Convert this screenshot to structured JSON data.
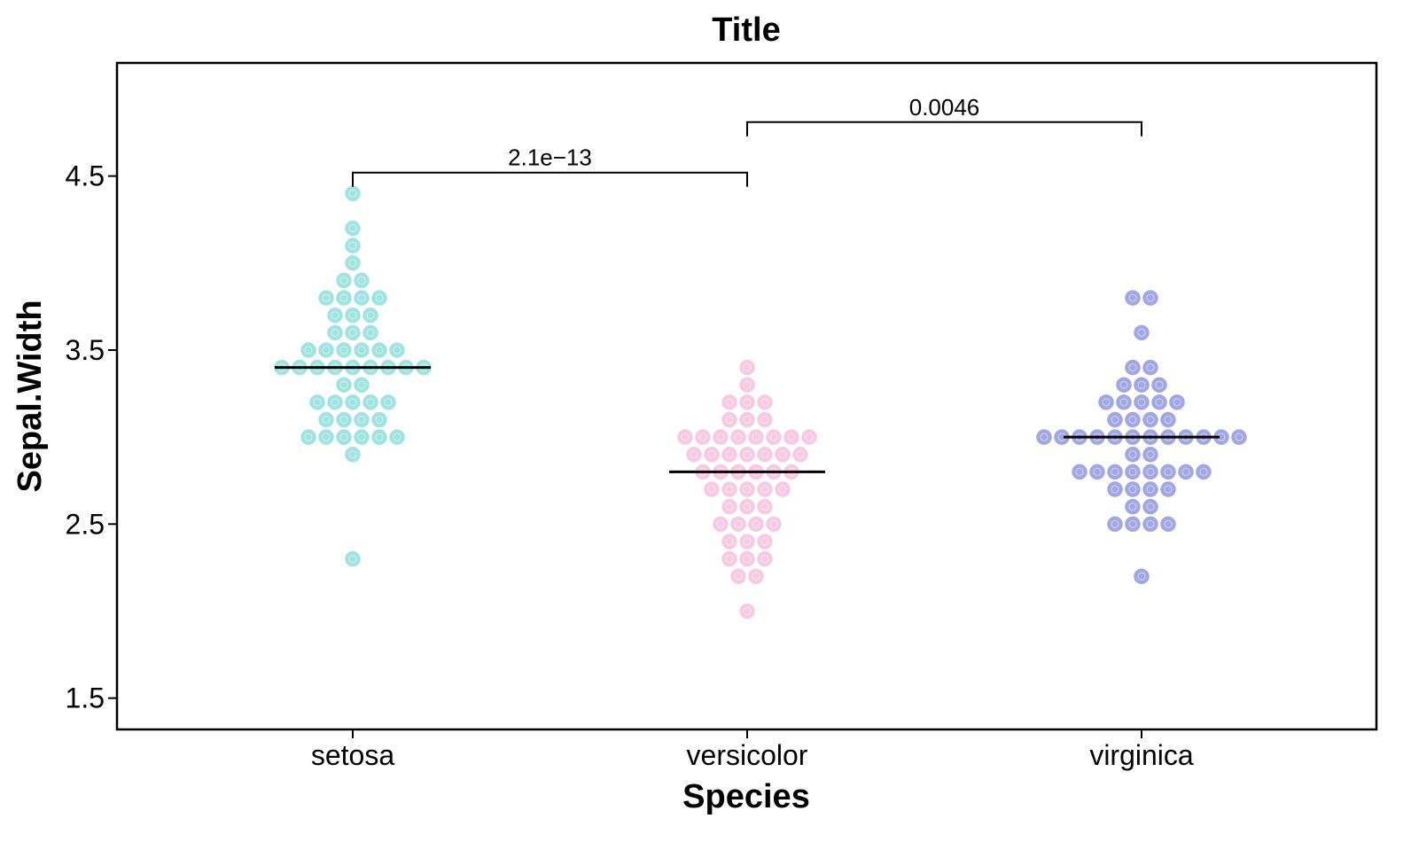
{
  "chart_data": {
    "type": "dotplot",
    "title": "Title",
    "xlabel": "Species",
    "ylabel": "Sepal.Width",
    "ylim": [
      1.32,
      5.15
    ],
    "yticks": [
      1.5,
      2.5,
      3.5,
      4.5
    ],
    "ytick_labels": [
      "1.5",
      "2.5",
      "3.5",
      "4.5"
    ],
    "categories": [
      "setosa",
      "versicolor",
      "virginica"
    ],
    "series": [
      {
        "name": "setosa",
        "color": "#90e0dc",
        "median": 3.4,
        "counts": {
          "2.3": 1,
          "2.9": 1,
          "3.0": 6,
          "3.1": 4,
          "3.2": 5,
          "3.3": 2,
          "3.4": 9,
          "3.5": 6,
          "3.6": 3,
          "3.7": 3,
          "3.8": 4,
          "3.9": 2,
          "4.0": 1,
          "4.1": 1,
          "4.2": 1,
          "4.4": 1
        }
      },
      {
        "name": "versicolor",
        "color": "#f7c0dd",
        "median": 2.8,
        "counts": {
          "2.0": 1,
          "2.2": 2,
          "2.3": 3,
          "2.4": 3,
          "2.5": 4,
          "2.6": 3,
          "2.7": 5,
          "2.8": 6,
          "2.9": 7,
          "3.0": 8,
          "3.1": 3,
          "3.2": 3,
          "3.3": 1,
          "3.4": 1
        }
      },
      {
        "name": "virginica",
        "color": "#9098e0",
        "median": 3.0,
        "counts": {
          "2.2": 1,
          "2.5": 4,
          "2.6": 2,
          "2.7": 4,
          "2.8": 8,
          "2.9": 2,
          "3.0": 12,
          "3.1": 4,
          "3.2": 5,
          "3.3": 3,
          "3.4": 2,
          "3.6": 1,
          "3.8": 2
        }
      }
    ],
    "comparisons": [
      {
        "from": "setosa",
        "to": "versicolor",
        "label": "2.1e−13",
        "y": 4.52
      },
      {
        "from": "versicolor",
        "to": "virginica",
        "label": "0.0046",
        "y": 4.81
      }
    ]
  }
}
